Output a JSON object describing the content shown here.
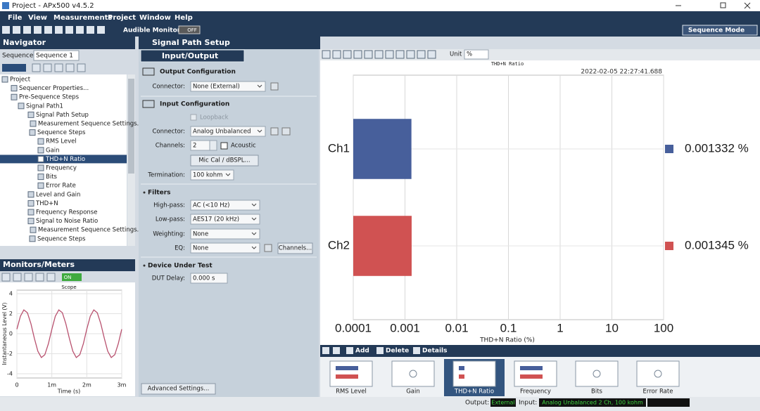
{
  "window": {
    "title": "Project - APx500 v4.5.2"
  },
  "menu": [
    "File",
    "View",
    "Measurements",
    "Project",
    "Window",
    "Help"
  ],
  "toolbar": {
    "audible_monitor": "Audible Monitor",
    "monitor_state": "OFF",
    "mode": "Sequence Mode"
  },
  "navigator": {
    "title": "Navigator",
    "sequence_label": "Sequence:",
    "sequence": "Sequence 1",
    "tree": [
      "Project",
      "Sequencer Properties...",
      "Pre-Sequence Steps",
      "Signal Path1",
      "Signal Path Setup",
      "Measurement Sequence Settings..",
      "Sequence Steps",
      "RMS Level",
      "Gain",
      "THD+N Ratio",
      "Frequency",
      "Bits",
      "Error Rate",
      "Level and Gain",
      "THD+N",
      "Frequency Response",
      "Signal to Noise Ratio",
      "Measurement Sequence Settings..",
      "Sequence Steps"
    ]
  },
  "monitors": {
    "title": "Monitors/Meters",
    "state": "ON"
  },
  "signal_path": {
    "title": "Signal Path Setup",
    "view": "Input/Output",
    "output_configuration": "Output Configuration",
    "output_connector_label": "Connector:",
    "output_connector": "None (External)",
    "input_configuration": "Input Configuration",
    "loopback": "Loopback",
    "input_connector_label": "Connector:",
    "input_connector": "Analog Unbalanced",
    "channels_label": "Channels:",
    "channels": 2,
    "acoustic": "Acoustic",
    "mic_cal": "Mic Cal / dBSPL...",
    "termination_label": "Termination:",
    "termination": "100 kohm",
    "filters": "Filters",
    "high_pass_label": "High-pass:",
    "high_pass": "AC (<10 Hz)",
    "low_pass_label": "Low-pass:",
    "low_pass": "AES17 (20 kHz)",
    "weighting_label": "Weighting:",
    "weighting": "None",
    "eq_label": "EQ:",
    "eq": "None",
    "eq_channels": "Channels...",
    "dut": "Device Under Test",
    "dut_delay_label": "DUT Delay:",
    "dut_delay": "0.000 s",
    "advanced": "Advanced Settings..."
  },
  "result_toolbar": {
    "unit_label": "Unit",
    "unit": "%"
  },
  "chart_data": [
    {
      "type": "bar",
      "orientation": "horizontal",
      "title": "THD+N Ratio",
      "subtitle": "2022-02-05 22:27:41.688",
      "categories": [
        "Ch1",
        "Ch2"
      ],
      "values": [
        0.001332,
        0.001345
      ],
      "value_labels": [
        "0.001332 %",
        "0.001345 %"
      ],
      "colors": [
        "#475f9b",
        "#d05252"
      ],
      "x_label": "THD+N Ratio (%)",
      "xlim": [
        0.0001,
        100
      ],
      "xticks": [
        0.0001,
        0.001,
        0.01,
        0.1,
        1,
        10,
        100
      ],
      "log_scale": true,
      "grid": true
    },
    {
      "type": "line",
      "title": "Scope",
      "x_label": "Time (s)",
      "y_label": "Instantaneous Level (V)",
      "x": [
        0,
        0.0001,
        0.0002,
        0.0003,
        0.0004,
        0.0005,
        0.0006,
        0.0007,
        0.0008,
        0.0009,
        0.001,
        0.0011,
        0.0012,
        0.0013,
        0.0014,
        0.0015,
        0.0016,
        0.0017,
        0.0018,
        0.0019,
        0.002,
        0.0021,
        0.0022,
        0.0023,
        0.0024,
        0.0025,
        0.0026,
        0.0027,
        0.0028,
        0.0029,
        0.003
      ],
      "series": [
        {
          "color": "#b8506e",
          "values": [
            0.45,
            1.75,
            2.38,
            2.1,
            1.02,
            -0.45,
            -1.75,
            -2.38,
            -2.1,
            -1.02,
            0.45,
            1.75,
            2.38,
            2.1,
            1.02,
            -0.45,
            -1.75,
            -2.38,
            -2.1,
            -1.02,
            0.45,
            1.75,
            2.38,
            2.1,
            1.02,
            -0.45,
            -1.75,
            -2.38,
            -2.1,
            -1.02,
            0.45
          ]
        }
      ],
      "xlim": [
        0,
        0.003
      ],
      "xticks": [
        0,
        {
          "value": 0.001,
          "label": "1m"
        },
        {
          "value": 0.002,
          "label": "2m"
        },
        {
          "value": 0.003,
          "label": "3m"
        }
      ],
      "ylim": [
        -4,
        4
      ],
      "yticks": [
        -4,
        -2,
        0,
        2,
        4
      ],
      "grid": true
    }
  ],
  "measurements": {
    "add": "Add",
    "delete": "Delete",
    "details": "Details",
    "thumbnails": [
      "RMS Level",
      "Gain",
      "THD+N Ratio",
      "Frequency",
      "Bits",
      "Error Rate"
    ]
  },
  "status": {
    "output_label": "Output:",
    "output": "External",
    "input_label": "Input:",
    "input": "Analog Unbalanced 2 Ch, 100 kohm"
  }
}
